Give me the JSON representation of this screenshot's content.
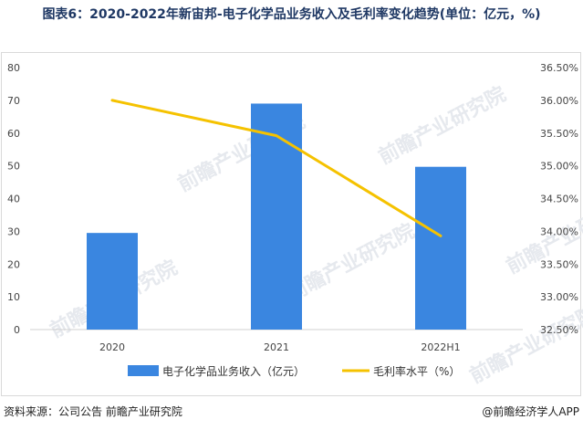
{
  "title": "图表6：2020-2022年新宙邦-电子化学品业务收入及毛利率变化趋势(单位：亿元，%)",
  "footer": {
    "source": "资料来源：公司公告 前瞻产业研究院",
    "brand": "@前瞻经济学人APP"
  },
  "watermark": "前瞻产业研究院",
  "colors": {
    "bar": "#3a86e0",
    "line": "#f5c200"
  },
  "chart_data": {
    "type": "bar",
    "categories": [
      "2020",
      "2021",
      "2022H1"
    ],
    "series": [
      {
        "name": "电子化学品业务收入（亿元）",
        "type": "bar",
        "axis": "left",
        "values": [
          29.5,
          69.0,
          49.7
        ]
      },
      {
        "name": "毛利率水平（%）",
        "type": "line",
        "axis": "right",
        "values": [
          36.0,
          35.46,
          33.93
        ]
      }
    ],
    "ylim_left": [
      0,
      80
    ],
    "yticks_left": [
      "0",
      "10",
      "20",
      "30",
      "40",
      "50",
      "60",
      "70",
      "80"
    ],
    "ylim_right": [
      32.5,
      36.5
    ],
    "yticks_right": [
      "32.50%",
      "33.00%",
      "33.50%",
      "34.00%",
      "34.50%",
      "35.00%",
      "35.50%",
      "36.00%",
      "36.50%"
    ],
    "legend_position": "bottom",
    "grid": false
  }
}
